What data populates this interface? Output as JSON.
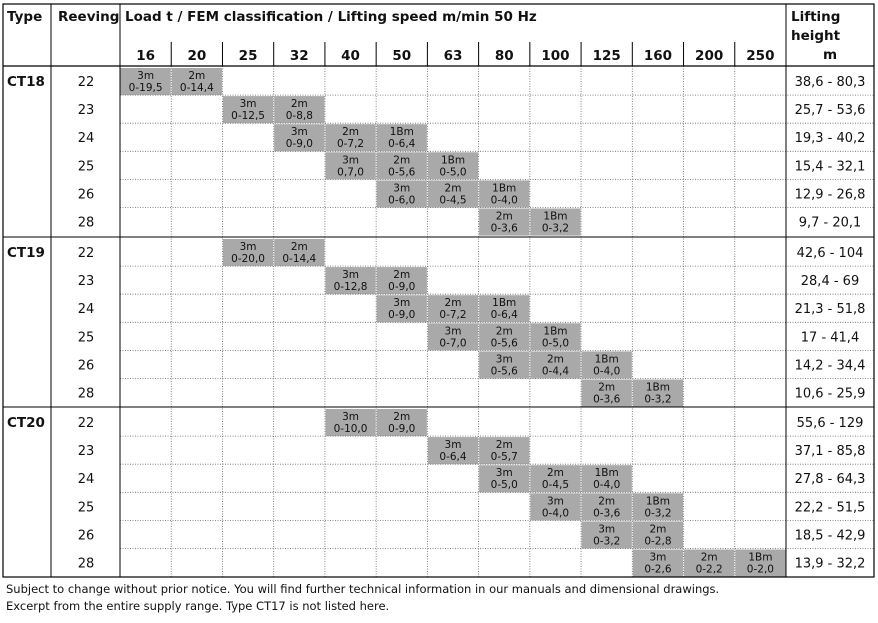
{
  "headers": {
    "type": "Type",
    "reeving": "Reeving",
    "load": "Load t / FEM classification / Lifting speed m/min 50 Hz",
    "lifting1": "Lifting",
    "lifting2": "height",
    "lifting3": "m"
  },
  "loads": [
    "16",
    "20",
    "25",
    "32",
    "40",
    "50",
    "63",
    "80",
    "100",
    "125",
    "160",
    "200",
    "250"
  ],
  "groups": [
    {
      "type": "CT18",
      "rows": [
        {
          "reeving": "22",
          "height": "38,6 - 80,3",
          "cells": [
            [
              0,
              "3m",
              "0-19,5"
            ],
            [
              1,
              "2m",
              "0-14,4"
            ]
          ]
        },
        {
          "reeving": "23",
          "height": "25,7 - 53,6",
          "cells": [
            [
              2,
              "3m",
              "0-12,5"
            ],
            [
              3,
              "2m",
              "0-8,8"
            ]
          ]
        },
        {
          "reeving": "24",
          "height": "19,3 - 40,2",
          "cells": [
            [
              3,
              "3m",
              "0-9,0"
            ],
            [
              4,
              "2m",
              "0-7,2"
            ],
            [
              5,
              "1Bm",
              "0-6,4"
            ]
          ]
        },
        {
          "reeving": "25",
          "height": "15,4 - 32,1",
          "cells": [
            [
              4,
              "3m",
              "0,7,0"
            ],
            [
              5,
              "2m",
              "0-5,6"
            ],
            [
              6,
              "1Bm",
              "0-5,0"
            ]
          ]
        },
        {
          "reeving": "26",
          "height": "12,9 - 26,8",
          "cells": [
            [
              5,
              "3m",
              "0-6,0"
            ],
            [
              6,
              "2m",
              "0-4,5"
            ],
            [
              7,
              "1Bm",
              "0-4,0"
            ]
          ]
        },
        {
          "reeving": "28",
          "height": "9,7 - 20,1",
          "cells": [
            [
              7,
              "2m",
              "0-3,6"
            ],
            [
              8,
              "1Bm",
              "0-3,2"
            ]
          ]
        }
      ]
    },
    {
      "type": "CT19",
      "rows": [
        {
          "reeving": "22",
          "height": "42,6 - 104",
          "cells": [
            [
              2,
              "3m",
              "0-20,0"
            ],
            [
              3,
              "2m",
              "0-14,4"
            ]
          ]
        },
        {
          "reeving": "23",
          "height": "28,4 - 69",
          "cells": [
            [
              4,
              "3m",
              "0-12,8"
            ],
            [
              5,
              "2m",
              "0-9,0"
            ]
          ]
        },
        {
          "reeving": "24",
          "height": "21,3 - 51,8",
          "cells": [
            [
              5,
              "3m",
              "0-9,0"
            ],
            [
              6,
              "2m",
              "0-7,2"
            ],
            [
              7,
              "1Bm",
              "0-6,4"
            ]
          ]
        },
        {
          "reeving": "25",
          "height": "17 - 41,4",
          "cells": [
            [
              6,
              "3m",
              "0-7,0"
            ],
            [
              7,
              "2m",
              "0-5,6"
            ],
            [
              8,
              "1Bm",
              "0-5,0"
            ]
          ]
        },
        {
          "reeving": "26",
          "height": "14,2 - 34,4",
          "cells": [
            [
              7,
              "3m",
              "0-5,6"
            ],
            [
              8,
              "2m",
              "0-4,4"
            ],
            [
              9,
              "1Bm",
              "0-4,0"
            ]
          ]
        },
        {
          "reeving": "28",
          "height": "10,6 - 25,9",
          "cells": [
            [
              9,
              "2m",
              "0-3,6"
            ],
            [
              10,
              "1Bm",
              "0-3,2"
            ]
          ]
        }
      ]
    },
    {
      "type": "CT20",
      "rows": [
        {
          "reeving": "22",
          "height": "55,6 - 129",
          "cells": [
            [
              4,
              "3m",
              "0-10,0"
            ],
            [
              5,
              "2m",
              "0-9,0"
            ]
          ]
        },
        {
          "reeving": "23",
          "height": "37,1 - 85,8",
          "cells": [
            [
              6,
              "3m",
              "0-6,4"
            ],
            [
              7,
              "2m",
              "0-5,7"
            ]
          ]
        },
        {
          "reeving": "24",
          "height": "27,8 - 64,3",
          "cells": [
            [
              7,
              "3m",
              "0-5,0"
            ],
            [
              8,
              "2m",
              "0-4,5"
            ],
            [
              9,
              "1Bm",
              "0-4,0"
            ]
          ]
        },
        {
          "reeving": "25",
          "height": "22,2 - 51,5",
          "cells": [
            [
              8,
              "3m",
              "0-4,0"
            ],
            [
              9,
              "2m",
              "0-3,6"
            ],
            [
              10,
              "1Bm",
              "0-3,2"
            ]
          ]
        },
        {
          "reeving": "26",
          "height": "18,5 - 42,9",
          "cells": [
            [
              9,
              "3m",
              "0-3,2"
            ],
            [
              10,
              "2m",
              "0-2,8"
            ]
          ]
        },
        {
          "reeving": "28",
          "height": "13,9 - 32,2",
          "cells": [
            [
              10,
              "3m",
              "0-2,6"
            ],
            [
              11,
              "2m",
              "0-2,2"
            ],
            [
              12,
              "1Bm",
              "0-2,0"
            ]
          ]
        }
      ]
    }
  ],
  "colors": {
    "cell_fill": "#a9a9a9",
    "line": "#000000",
    "dotted": "#666666"
  },
  "footnotes": [
    "Subject to change without prior notice. You will find further technical information in our manuals and dimensional drawings.",
    "Excerpt from the entire supply range. Type CT17 is not listed here."
  ]
}
